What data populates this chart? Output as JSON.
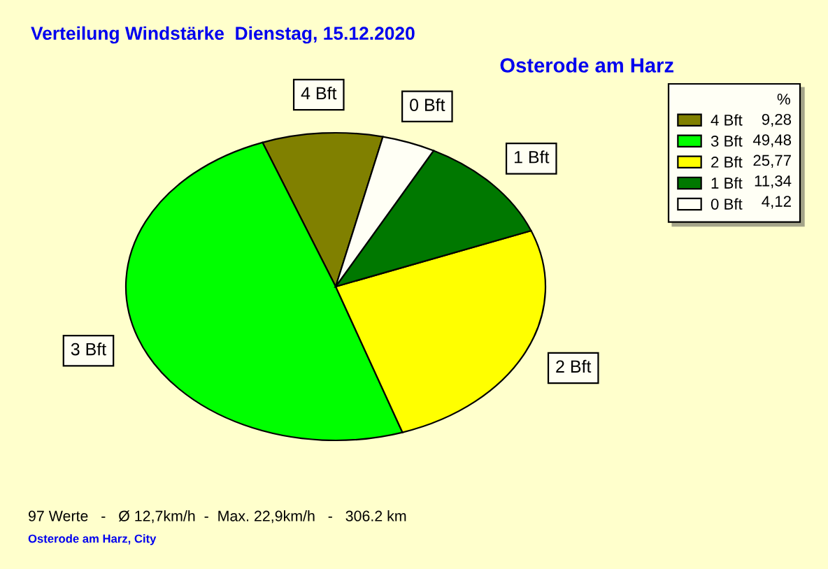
{
  "chart_data": {
    "type": "pie",
    "title": "Verteilung Windstärke  Dienstag, 15.12.2020",
    "subtitle": "Osterode am Harz",
    "categories": [
      "4 Bft",
      "3 Bft",
      "2 Bft",
      "1 Bft",
      "0 Bft"
    ],
    "values": [
      9.28,
      49.48,
      25.77,
      11.34,
      4.12
    ],
    "value_labels": [
      "9,28",
      "49,48",
      "25,77",
      "11,34",
      "4,12"
    ],
    "colors": [
      "#808000",
      "#00ff00",
      "#ffff00",
      "#007800",
      "#fffff5"
    ],
    "legend": "top right",
    "legend_title": "%",
    "annotations": [
      "97 Werte   -   Ø 12,7km/h  -  Max. 22,9km/h   -   306.2 km",
      "Osterode am Harz, City"
    ]
  }
}
